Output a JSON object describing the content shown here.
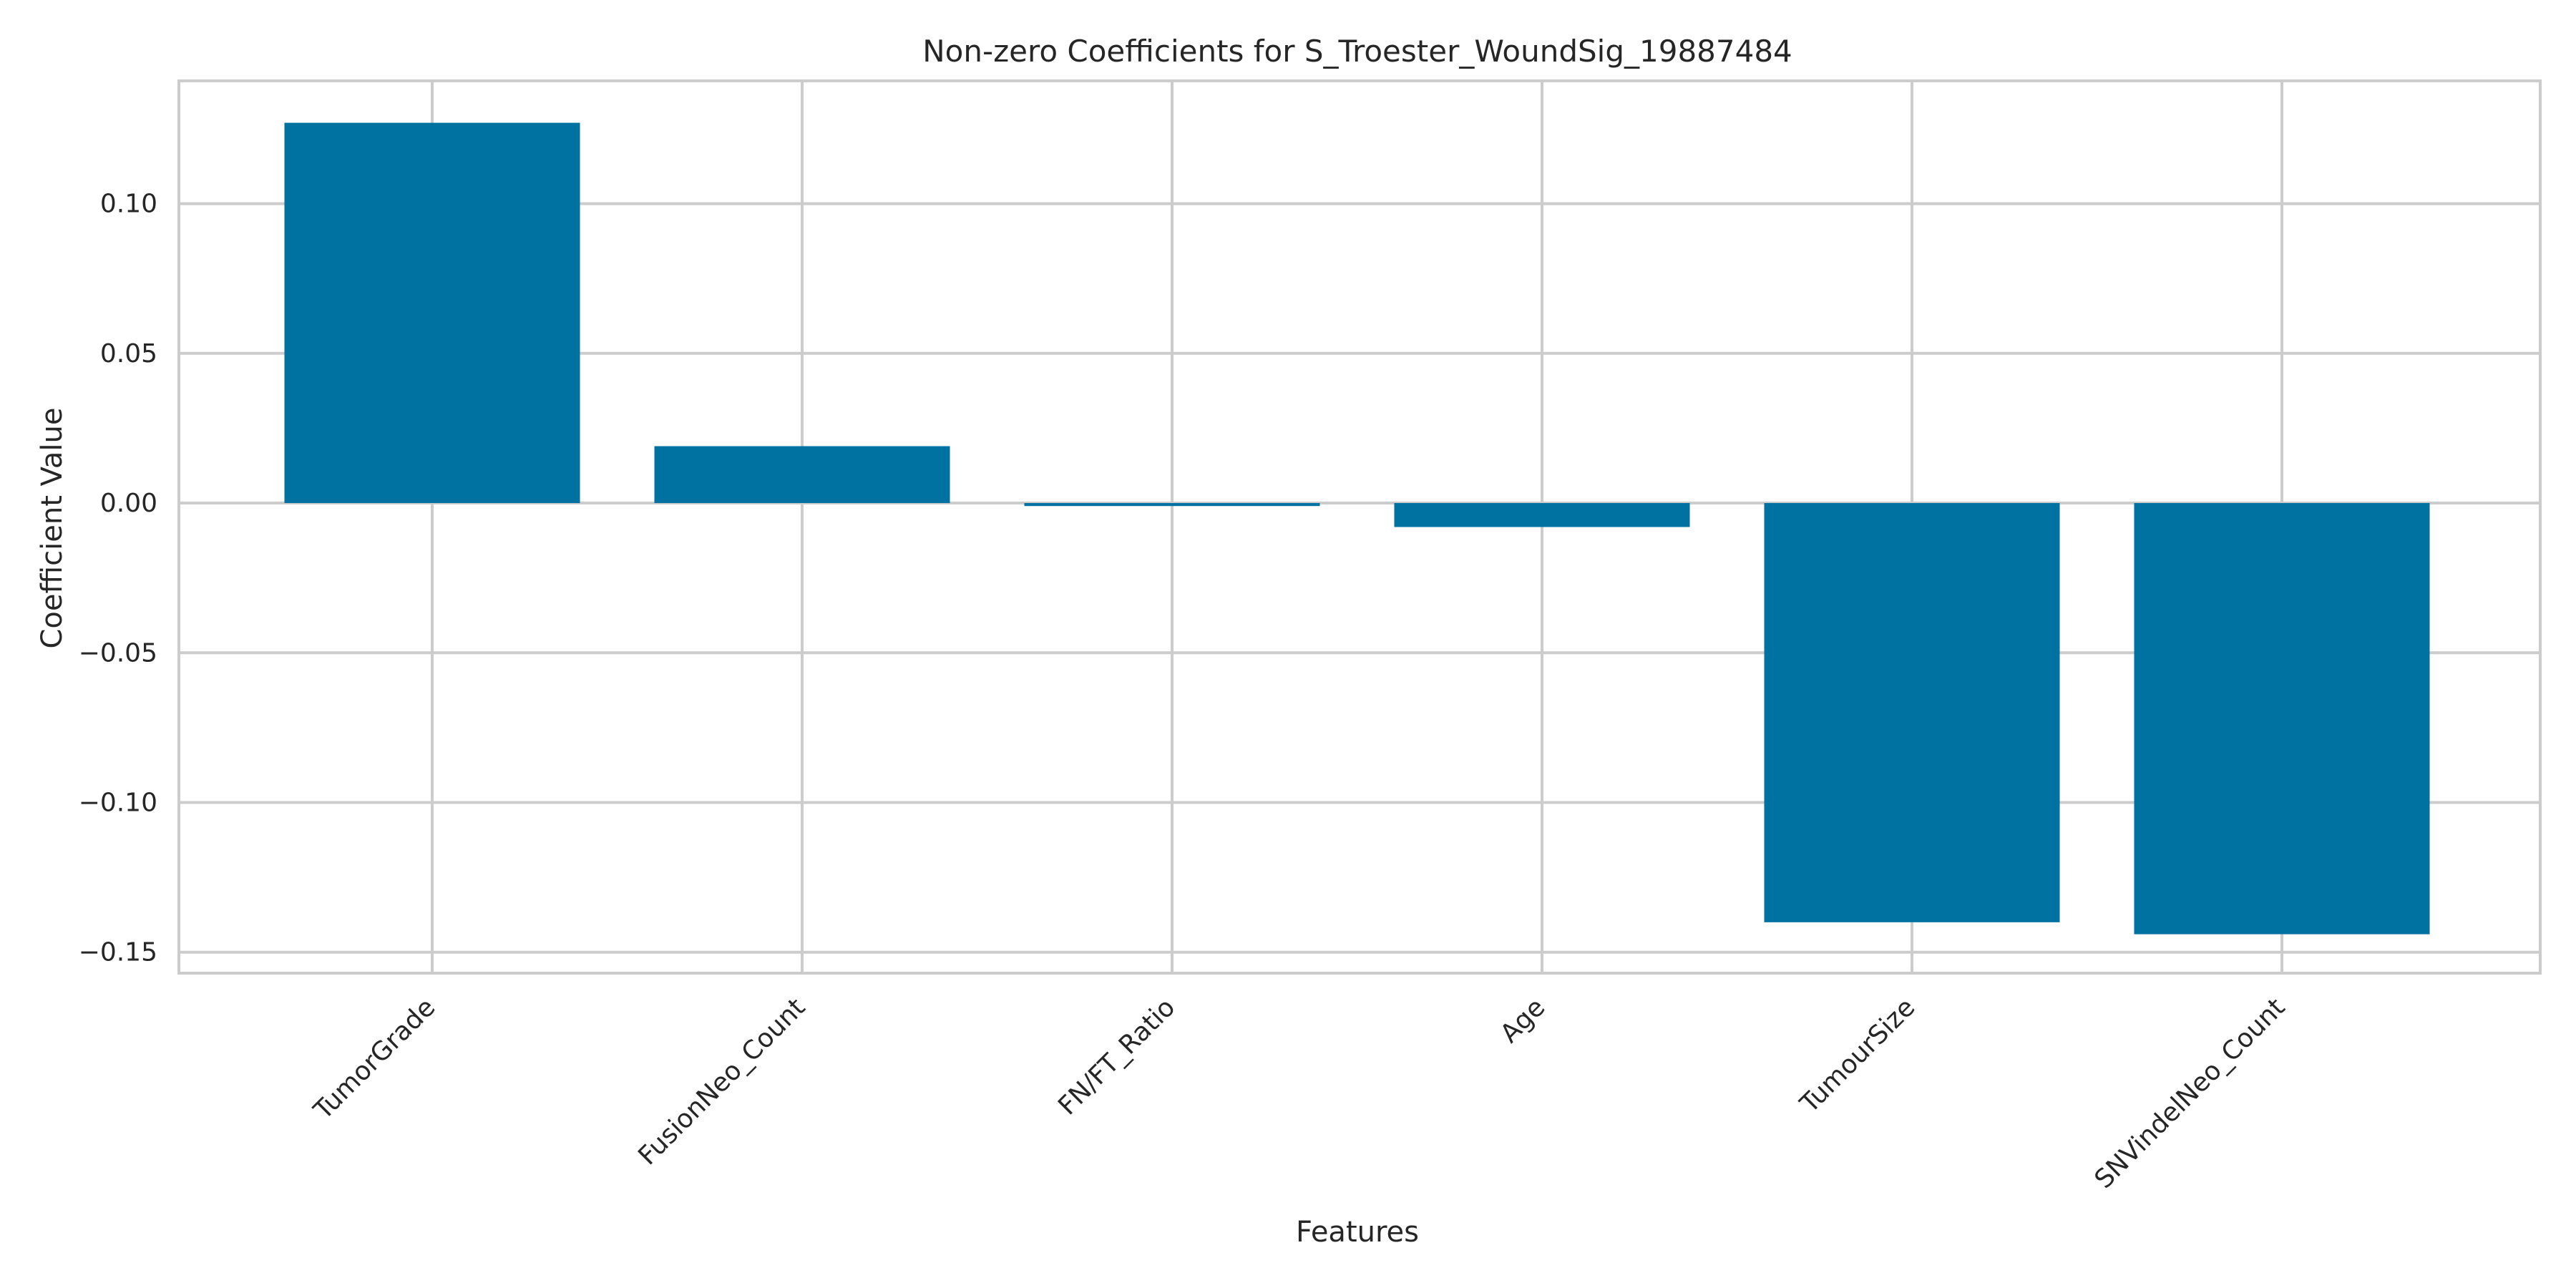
{
  "chart_data": {
    "type": "bar",
    "title": "Non-zero Coefficients for S_Troester_WoundSig_19887484",
    "xlabel": "Features",
    "ylabel": "Coefficient Value",
    "categories": [
      "TumorGrade",
      "FusionNeo_Count",
      "FN/FT_Ratio",
      "Age",
      "TumourSize",
      "SNVindelNeo_Count"
    ],
    "values": [
      0.127,
      0.019,
      -0.001,
      -0.008,
      -0.14,
      -0.144
    ],
    "ylim": [
      -0.157,
      0.141
    ],
    "yticks": [
      0.1,
      0.05,
      0.0,
      -0.05,
      -0.1,
      -0.15
    ],
    "ytick_labels": [
      "0.10",
      "0.05",
      "0.00",
      "−0.05",
      "−0.10",
      "−0.15"
    ],
    "grid": true,
    "bar_color": "#0072A2"
  }
}
